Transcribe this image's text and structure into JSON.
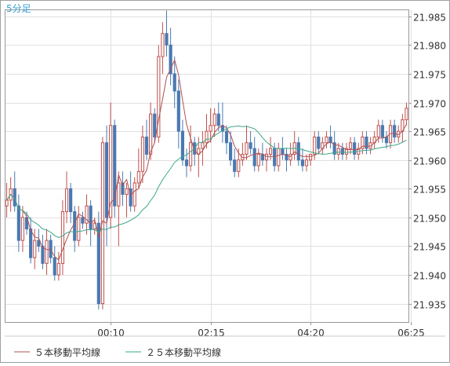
{
  "chart_data": {
    "type": "candlestick",
    "interval_label": "5分足",
    "y_ticks": [
      "21.985",
      "21.980",
      "21.975",
      "21.970",
      "21.965",
      "21.960",
      "21.955",
      "21.950",
      "21.945",
      "21.940",
      "21.935"
    ],
    "ylim": [
      21.9318,
      21.9862
    ],
    "x_ticks": [
      {
        "label": "00:10",
        "index": 26
      },
      {
        "label": "02:15",
        "index": 51
      },
      {
        "label": "04:20",
        "index": 76
      },
      {
        "label": "06:25",
        "index": 101
      }
    ],
    "legend": [
      {
        "name": "５本移動平均線",
        "color": "#b05050"
      },
      {
        "name": "２５本移動平均線",
        "color": "#3aa88a"
      }
    ],
    "colors": {
      "up": "#c0504d",
      "down": "#4a78b0",
      "ma5": "#b05050",
      "ma25": "#3aa88a",
      "grid": "#e0e0e0",
      "axis": "#999999",
      "interval": "#3aa0d8"
    },
    "candles": [
      [
        21.952,
        21.956,
        21.95,
        21.953
      ],
      [
        21.953,
        21.957,
        21.951,
        21.955
      ],
      [
        21.955,
        21.958,
        21.951,
        21.952
      ],
      [
        21.952,
        21.954,
        21.944,
        21.946
      ],
      [
        21.946,
        21.952,
        21.944,
        21.95
      ],
      [
        21.95,
        21.951,
        21.947,
        21.948
      ],
      [
        21.948,
        21.95,
        21.942,
        21.943
      ],
      [
        21.943,
        21.948,
        21.941,
        21.946
      ],
      [
        21.946,
        21.948,
        21.944,
        21.945
      ],
      [
        21.945,
        21.947,
        21.941,
        21.942
      ],
      [
        21.942,
        21.948,
        21.94,
        21.946
      ],
      [
        21.946,
        21.947,
        21.942,
        21.943
      ],
      [
        21.943,
        21.945,
        21.939,
        21.94
      ],
      [
        21.94,
        21.944,
        21.939,
        21.942
      ],
      [
        21.942,
        21.953,
        21.94,
        21.951
      ],
      [
        21.951,
        21.958,
        21.949,
        21.955
      ],
      [
        21.955,
        21.956,
        21.949,
        21.951
      ],
      [
        21.951,
        21.952,
        21.944,
        21.946
      ],
      [
        21.946,
        21.952,
        21.945,
        21.95
      ],
      [
        21.95,
        21.951,
        21.948,
        21.949
      ],
      [
        21.949,
        21.954,
        21.947,
        21.952
      ],
      [
        21.952,
        21.953,
        21.945,
        21.948
      ],
      [
        21.948,
        21.95,
        21.947,
        21.949
      ],
      [
        21.949,
        21.951,
        21.934,
        21.935
      ],
      [
        21.935,
        21.964,
        21.934,
        21.963
      ],
      [
        21.963,
        21.966,
        21.945,
        21.95
      ],
      [
        21.95,
        21.97,
        21.948,
        21.966
      ],
      [
        21.966,
        21.967,
        21.95,
        21.952
      ],
      [
        21.952,
        21.958,
        21.945,
        21.956
      ],
      [
        21.956,
        21.958,
        21.952,
        21.954
      ],
      [
        21.954,
        21.956,
        21.95,
        21.955
      ],
      [
        21.955,
        21.958,
        21.951,
        21.952
      ],
      [
        21.952,
        21.957,
        21.951,
        21.956
      ],
      [
        21.956,
        21.962,
        21.955,
        21.958
      ],
      [
        21.958,
        21.966,
        21.956,
        21.964
      ],
      [
        21.964,
        21.967,
        21.96,
        21.961
      ],
      [
        21.961,
        21.97,
        21.96,
        21.968
      ],
      [
        21.968,
        21.969,
        21.963,
        21.964
      ],
      [
        21.964,
        21.98,
        21.963,
        21.978
      ],
      [
        21.978,
        21.984,
        21.975,
        21.982
      ],
      [
        21.982,
        21.986,
        21.978,
        21.98
      ],
      [
        21.98,
        21.983,
        21.973,
        21.975
      ],
      [
        21.975,
        21.978,
        21.969,
        21.972
      ],
      [
        21.972,
        21.974,
        21.962,
        21.965
      ],
      [
        21.965,
        21.967,
        21.959,
        21.96
      ],
      [
        21.96,
        21.962,
        21.957,
        21.959
      ],
      [
        21.959,
        21.966,
        21.958,
        21.963
      ],
      [
        21.963,
        21.964,
        21.959,
        21.961
      ],
      [
        21.961,
        21.964,
        21.957,
        21.962
      ],
      [
        21.962,
        21.965,
        21.959,
        21.963
      ],
      [
        21.963,
        21.968,
        21.962,
        21.965
      ],
      [
        21.965,
        21.969,
        21.963,
        21.966
      ],
      [
        21.966,
        21.969,
        21.964,
        21.968
      ],
      [
        21.968,
        21.97,
        21.965,
        21.966
      ],
      [
        21.966,
        21.97,
        21.963,
        21.965
      ],
      [
        21.965,
        21.966,
        21.961,
        21.963
      ],
      [
        21.963,
        21.965,
        21.959,
        21.96
      ],
      [
        21.96,
        21.962,
        21.957,
        21.958
      ],
      [
        21.958,
        21.962,
        21.957,
        21.96
      ],
      [
        21.96,
        21.963,
        21.959,
        21.961
      ],
      [
        21.961,
        21.966,
        21.96,
        21.963
      ],
      [
        21.963,
        21.965,
        21.961,
        21.962
      ],
      [
        21.962,
        21.964,
        21.958,
        21.959
      ],
      [
        21.959,
        21.962,
        21.958,
        21.961
      ],
      [
        21.961,
        21.963,
        21.959,
        21.96
      ],
      [
        21.96,
        21.962,
        21.958,
        21.961
      ],
      [
        21.961,
        21.964,
        21.96,
        21.962
      ],
      [
        21.962,
        21.963,
        21.958,
        21.959
      ],
      [
        21.959,
        21.963,
        21.958,
        21.962
      ],
      [
        21.962,
        21.964,
        21.96,
        21.961
      ],
      [
        21.961,
        21.962,
        21.958,
        21.96
      ],
      [
        21.96,
        21.963,
        21.959,
        21.961
      ],
      [
        21.961,
        21.965,
        21.96,
        21.963
      ],
      [
        21.963,
        21.964,
        21.959,
        21.96
      ],
      [
        21.96,
        21.962,
        21.958,
        21.959
      ],
      [
        21.959,
        21.961,
        21.958,
        21.96
      ],
      [
        21.96,
        21.961,
        21.959,
        21.961
      ],
      [
        21.961,
        21.965,
        21.96,
        21.964
      ],
      [
        21.964,
        21.965,
        21.961,
        21.962
      ],
      [
        21.962,
        21.964,
        21.961,
        21.963
      ],
      [
        21.963,
        21.965,
        21.962,
        21.964
      ],
      [
        21.964,
        21.966,
        21.962,
        21.963
      ],
      [
        21.963,
        21.965,
        21.96,
        21.961
      ],
      [
        21.961,
        21.963,
        21.96,
        21.962
      ],
      [
        21.962,
        21.963,
        21.96,
        21.961
      ],
      [
        21.961,
        21.963,
        21.96,
        21.962
      ],
      [
        21.962,
        21.964,
        21.961,
        21.963
      ],
      [
        21.963,
        21.964,
        21.96,
        21.961
      ],
      [
        21.961,
        21.963,
        21.96,
        21.962
      ],
      [
        21.962,
        21.965,
        21.961,
        21.964
      ],
      [
        21.964,
        21.965,
        21.961,
        21.962
      ],
      [
        21.962,
        21.964,
        21.961,
        21.963
      ],
      [
        21.963,
        21.965,
        21.962,
        21.964
      ],
      [
        21.964,
        21.967,
        21.963,
        21.966
      ],
      [
        21.966,
        21.967,
        21.963,
        21.964
      ],
      [
        21.964,
        21.965,
        21.962,
        21.963
      ],
      [
        21.963,
        21.967,
        21.962,
        21.966
      ],
      [
        21.966,
        21.967,
        21.963,
        21.964
      ],
      [
        21.964,
        21.966,
        21.963,
        21.965
      ],
      [
        21.965,
        21.968,
        21.963,
        21.967
      ],
      [
        21.967,
        21.97,
        21.966,
        21.969
      ]
    ]
  }
}
